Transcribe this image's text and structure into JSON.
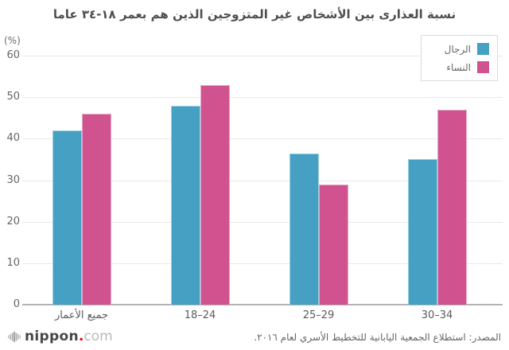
{
  "title": "نسبة العذارى بين الأشخاص غير المتزوجين الذين هم بعمر ١٨-٣٤ عاما",
  "y_axis_unit": "(%)",
  "chart_data": {
    "type": "bar",
    "title": "نسبة العذارى بين الأشخاص غير المتزوجين الذين هم بعمر ١٨-٣٤ عاما",
    "categories": [
      "جميع الأعمار",
      "18–24",
      "25–29",
      "30–34"
    ],
    "series": [
      {
        "name": "الرجال",
        "color": "#45a0c3",
        "border_color": "#9ccedf",
        "values": [
          42,
          48,
          36.5,
          35
        ]
      },
      {
        "name": "النساء",
        "color": "#d0538f",
        "border_color": "#e3a7c6",
        "values": [
          46,
          53,
          29,
          47
        ]
      }
    ],
    "ylabel": "(%)",
    "ylim": [
      0,
      60
    ],
    "yticks": [
      0,
      10,
      20,
      30,
      40,
      50,
      60
    ],
    "grid": true,
    "legend_position": "top-right"
  },
  "footer": {
    "logo": {
      "brand": "nippon",
      "dot": ".",
      "tld": "com",
      "dot_color": "#e60012"
    },
    "source": "المصدر: استطلاع الجمعية اليابانية للتخطيط الأسري لعام ٢٠١٦."
  },
  "colors": {
    "men": "#45a0c3",
    "women": "#d0538f",
    "gridline": "#e9e9e9",
    "axis_baseline": "#b3b3b3",
    "title_text": "#4f4f4f"
  }
}
